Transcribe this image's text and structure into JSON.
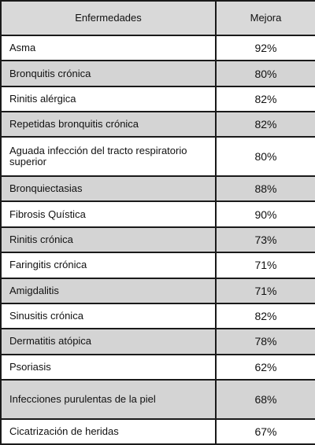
{
  "table": {
    "headers": [
      "Enfermedades",
      "Mejora"
    ],
    "rows": [
      {
        "disease": "Asma",
        "improvement": "92%"
      },
      {
        "disease": "Bronquitis crónica",
        "improvement": "80%"
      },
      {
        "disease": "Rinitis alérgica",
        "improvement": "82%"
      },
      {
        "disease": "Repetidas bronquitis crónica",
        "improvement": "82%"
      },
      {
        "disease": "Aguada infección del tracto respiratorio superior",
        "improvement": "80%"
      },
      {
        "disease": "Bronquiectasias",
        "improvement": "88%"
      },
      {
        "disease": "Fibrosis Quística",
        "improvement": "90%"
      },
      {
        "disease": "Rinitis crónica",
        "improvement": "73%"
      },
      {
        "disease": "Faringitis crónica",
        "improvement": "71%"
      },
      {
        "disease": "Amigdalitis",
        "improvement": "71%"
      },
      {
        "disease": "Sinusitis crónica",
        "improvement": "82%"
      },
      {
        "disease": "Dermatitis atópica",
        "improvement": "78%"
      },
      {
        "disease": "Psoriasis",
        "improvement": "62%"
      },
      {
        "disease": "Infecciones purulentas de la piel",
        "improvement": "68%"
      },
      {
        "disease": "Cicatrización de heridas",
        "improvement": "67%"
      }
    ]
  }
}
